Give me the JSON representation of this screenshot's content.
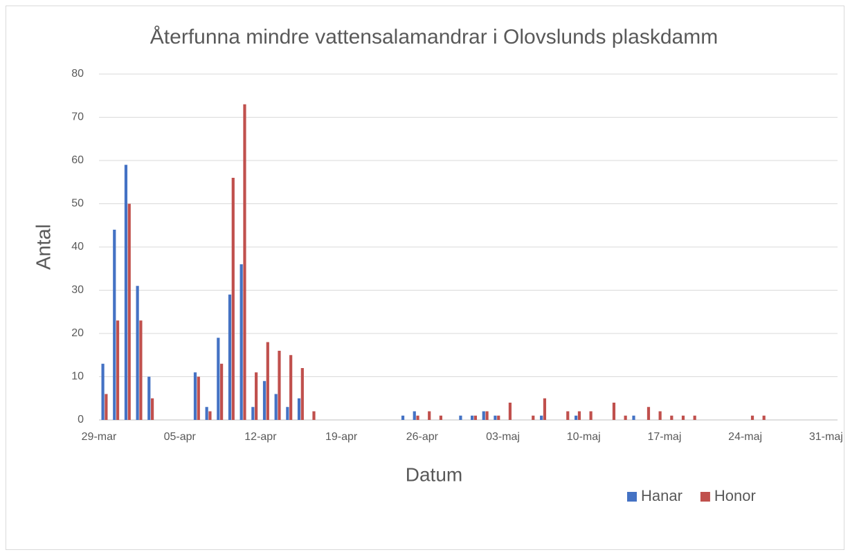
{
  "chart_data": {
    "type": "bar",
    "title": "Återfunna mindre vattensalamandrar i Olovslunds plaskdamm",
    "x_label": "Datum",
    "y_label": "Antal",
    "categories": [
      "29-mar",
      null,
      null,
      null,
      null,
      null,
      null,
      "05-apr",
      null,
      null,
      null,
      null,
      null,
      null,
      "12-apr",
      null,
      null,
      null,
      null,
      null,
      null,
      "19-apr",
      null,
      null,
      null,
      null,
      null,
      null,
      "26-apr",
      null,
      null,
      null,
      null,
      null,
      null,
      "03-maj",
      null,
      null,
      null,
      null,
      null,
      null,
      "10-maj",
      null,
      null,
      null,
      null,
      null,
      null,
      "17-maj",
      null,
      null,
      null,
      null,
      null,
      null,
      "24-maj",
      null,
      null,
      null,
      null,
      null,
      null,
      "31-maj"
    ],
    "series": [
      {
        "name": "Hanar",
        "color": "#4472c4",
        "values": [
          13,
          44,
          59,
          31,
          10,
          null,
          null,
          null,
          11,
          3,
          19,
          29,
          36,
          3,
          9,
          6,
          3,
          5,
          null,
          null,
          null,
          null,
          null,
          null,
          null,
          null,
          1,
          2,
          null,
          null,
          null,
          1,
          1,
          2,
          1,
          null,
          null,
          null,
          1,
          null,
          null,
          1,
          null,
          null,
          null,
          null,
          1,
          null,
          null,
          null,
          null,
          null,
          null,
          null,
          null,
          null,
          null,
          null,
          null,
          null,
          null,
          null,
          null,
          null
        ]
      },
      {
        "name": "Honor",
        "color": "#c0504d",
        "values": [
          6,
          23,
          50,
          23,
          5,
          null,
          null,
          null,
          10,
          2,
          13,
          56,
          73,
          11,
          18,
          16,
          15,
          12,
          2,
          null,
          null,
          null,
          null,
          null,
          null,
          null,
          null,
          1,
          2,
          1,
          null,
          null,
          1,
          2,
          1,
          4,
          null,
          1,
          5,
          null,
          2,
          2,
          2,
          null,
          4,
          1,
          null,
          3,
          2,
          1,
          1,
          1,
          null,
          null,
          null,
          null,
          1,
          1,
          null,
          null,
          null,
          null,
          null,
          null
        ]
      }
    ],
    "ylim": [
      0,
      80
    ],
    "yticks": [
      0,
      10,
      20,
      30,
      40,
      50,
      60,
      70,
      80
    ],
    "grid": true,
    "legend": "bottom-right"
  }
}
